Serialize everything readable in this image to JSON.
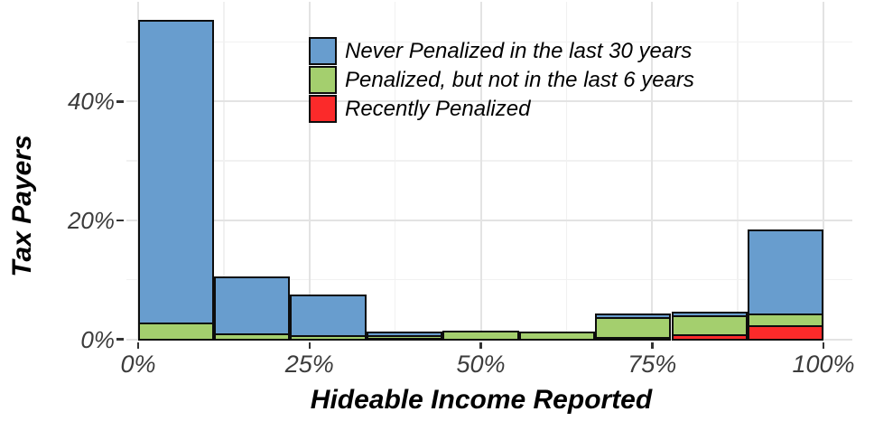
{
  "chart_data": {
    "type": "bar",
    "stacked": true,
    "xlabel": "Hideable Income Reported",
    "ylabel": "Tax Payers",
    "grid": true,
    "x_axis": {
      "range_pct": [
        0,
        100
      ],
      "major_ticks_pct": [
        0,
        25,
        50,
        75,
        100
      ],
      "minor_ticks_pct": [
        12.5,
        37.5,
        62.5,
        87.5
      ],
      "tick_labels": [
        "0%",
        "25%",
        "50%",
        "75%",
        "100%"
      ]
    },
    "y_axis": {
      "range_pct": [
        0,
        56
      ],
      "major_ticks_pct": [
        0,
        20,
        40
      ],
      "minor_ticks_pct": [
        10,
        30,
        50
      ],
      "tick_labels": [
        "0%",
        "20%",
        "40%"
      ]
    },
    "bin_edges_pct": [
      0,
      11.1,
      22.2,
      33.3,
      44.4,
      55.6,
      66.7,
      77.8,
      88.9,
      100
    ],
    "series": [
      {
        "name": "Recently Penalized",
        "color": "#fb2a2a",
        "stack_position": "bottom",
        "values_pct": [
          0,
          0,
          0,
          0.25,
          0,
          0,
          0.4,
          0.8,
          2.3
        ]
      },
      {
        "name": "Penalized, but not in the last 6 years",
        "color": "#a4cf6e",
        "stack_position": "middle",
        "values_pct": [
          2.8,
          1.0,
          0.7,
          0.5,
          1.1,
          1.0,
          3.4,
          3.3,
          2.1
        ]
      },
      {
        "name": "Never Penalized in the last 30 years",
        "color": "#689dce",
        "stack_position": "top",
        "values_pct": [
          50.6,
          9.3,
          6.5,
          0.25,
          0,
          0,
          0.3,
          0.3,
          13.8
        ]
      }
    ],
    "bar_totals_pct": [
      53.4,
      10.3,
      7.2,
      1.0,
      1.1,
      1.0,
      4.1,
      4.4,
      18.2
    ],
    "legend": {
      "position": "top-center-inside",
      "entries": [
        {
          "label": "Never Penalized in the last 30 years",
          "color": "#689dce"
        },
        {
          "label": "Penalized, but not in the last 6 years",
          "color": "#a4cf6e"
        },
        {
          "label": "Recently Penalized",
          "color": "#fb2a2a"
        }
      ]
    },
    "colors": {
      "bar_border": "#0d0d0d",
      "grid_major": "#e3e3e3",
      "grid_minor": "#f1f1f1",
      "tick_label": "#3c3c3c",
      "axis_title": "#000000",
      "background": "#ffffff"
    }
  }
}
